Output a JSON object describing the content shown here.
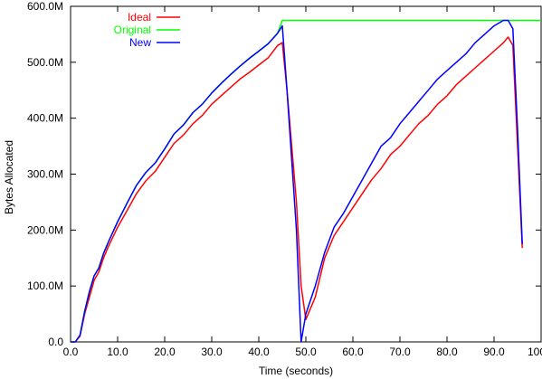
{
  "chart_data": {
    "type": "line",
    "title": "",
    "xlabel": "Time (seconds)",
    "ylabel": "Bytes Allocated",
    "xlim": [
      0,
      100
    ],
    "ylim": [
      0,
      600
    ],
    "grid": false,
    "legend_position": "top-left",
    "xticks": [
      0,
      10,
      20,
      30,
      40,
      50,
      60,
      70,
      80,
      90,
      100
    ],
    "xtick_labels": [
      "0.0",
      "10.0",
      "20.0",
      "30.0",
      "40.0",
      "50.0",
      "60.0",
      "70.0",
      "80.0",
      "90.0",
      "100.0"
    ],
    "yticks": [
      0,
      100,
      200,
      300,
      400,
      500,
      600
    ],
    "ytick_labels": [
      "0.0",
      "100.0M",
      "200.0M",
      "300.0M",
      "400.0M",
      "500.0M",
      "600.0M"
    ],
    "series": [
      {
        "name": "Ideal",
        "color": "#ff0000",
        "x": [
          0,
          1,
          2,
          3,
          4,
          5,
          6,
          7,
          8,
          10,
          12,
          14,
          16,
          18,
          20,
          22,
          24,
          26,
          28,
          30,
          32,
          34,
          36,
          38,
          40,
          42,
          44,
          45,
          46,
          48,
          49,
          50,
          52,
          54,
          56,
          58,
          60,
          62,
          64,
          66,
          68,
          70,
          72,
          74,
          76,
          78,
          80,
          82,
          84,
          86,
          88,
          90,
          92,
          93,
          94,
          95,
          96
        ],
        "y": [
          0,
          0,
          10,
          50,
          80,
          110,
          125,
          150,
          170,
          205,
          235,
          265,
          288,
          305,
          330,
          355,
          370,
          390,
          405,
          425,
          440,
          455,
          470,
          482,
          495,
          508,
          530,
          535,
          450,
          250,
          100,
          40,
          80,
          150,
          190,
          215,
          240,
          265,
          290,
          310,
          335,
          350,
          370,
          390,
          405,
          425,
          440,
          460,
          475,
          490,
          505,
          520,
          535,
          545,
          530,
          350,
          168
        ]
      },
      {
        "name": "Original",
        "color": "#00ff00",
        "x": [
          0,
          1,
          2,
          3,
          4,
          5,
          6,
          7,
          8,
          10,
          12,
          14,
          16,
          18,
          20,
          22,
          24,
          26,
          28,
          30,
          32,
          34,
          36,
          38,
          40,
          42,
          44,
          45,
          93,
          100
        ],
        "y": [
          0,
          0,
          12,
          55,
          90,
          118,
          132,
          158,
          178,
          215,
          248,
          280,
          303,
          320,
          345,
          372,
          388,
          410,
          425,
          445,
          462,
          478,
          493,
          507,
          520,
          533,
          552,
          575,
          575,
          575
        ]
      },
      {
        "name": "New",
        "color": "#0000ff",
        "x": [
          0,
          1,
          2,
          3,
          4,
          5,
          6,
          7,
          8,
          10,
          12,
          14,
          16,
          18,
          20,
          22,
          24,
          26,
          28,
          30,
          32,
          34,
          36,
          38,
          40,
          42,
          44,
          45,
          46,
          48,
          49,
          50,
          52,
          54,
          56,
          58,
          60,
          62,
          64,
          66,
          68,
          70,
          72,
          74,
          76,
          78,
          80,
          82,
          84,
          86,
          88,
          90,
          92,
          93,
          94,
          95,
          96
        ],
        "y": [
          0,
          0,
          12,
          55,
          90,
          118,
          132,
          158,
          178,
          215,
          248,
          280,
          303,
          320,
          345,
          372,
          388,
          410,
          425,
          445,
          462,
          478,
          493,
          507,
          520,
          533,
          552,
          565,
          450,
          200,
          0,
          50,
          100,
          160,
          205,
          230,
          260,
          290,
          320,
          350,
          365,
          390,
          410,
          430,
          450,
          470,
          485,
          500,
          515,
          535,
          550,
          565,
          575,
          575,
          560,
          380,
          175
        ]
      }
    ]
  }
}
